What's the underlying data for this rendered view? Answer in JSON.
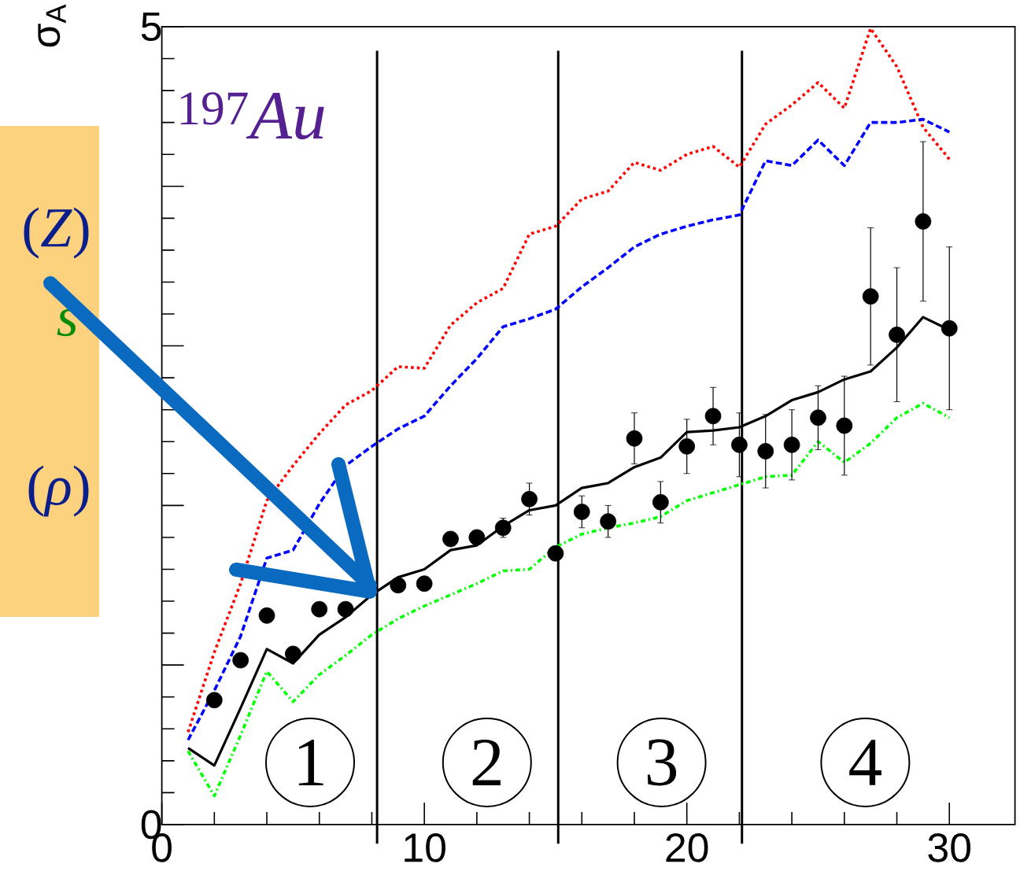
{
  "chart_data": {
    "type": "line",
    "ylabel": "σ$_{A}$",
    "x": [
      1,
      2,
      3,
      4,
      5,
      6,
      7,
      8,
      9,
      10,
      11,
      12,
      13,
      14,
      15,
      16,
      17,
      18,
      19,
      20,
      21,
      22,
      23,
      24,
      25,
      26,
      27,
      28,
      29,
      30
    ],
    "series": [
      {
        "type": "scatter",
        "color": "#000000",
        "marker": "circle",
        "x": [
          2,
          3,
          4,
          5,
          6,
          7,
          8,
          9,
          10,
          11,
          12,
          13,
          14,
          15,
          16,
          17,
          18,
          19,
          20,
          21,
          22,
          23,
          24,
          25,
          26,
          27,
          28,
          29,
          30
        ],
        "values": [
          0.78,
          1.03,
          1.31,
          1.07,
          1.35,
          1.35,
          null,
          1.5,
          1.51,
          1.79,
          1.8,
          1.86,
          2.04,
          1.7,
          1.96,
          1.9,
          2.42,
          2.02,
          2.37,
          2.56,
          2.38,
          2.34,
          2.38,
          2.55,
          2.5,
          3.31,
          3.07,
          3.78,
          3.11
        ],
        "errors": [
          null,
          null,
          null,
          null,
          null,
          null,
          null,
          null,
          null,
          null,
          0.04,
          0.06,
          0.1,
          null,
          0.1,
          0.1,
          0.16,
          0.13,
          0.17,
          0.18,
          0.2,
          0.23,
          0.22,
          0.2,
          0.31,
          0.43,
          0.42,
          0.5,
          0.51
        ]
      },
      {
        "color": "#000000",
        "marker": "none",
        "line_style": "solid",
        "values": [
          0.48,
          0.37,
          0.73,
          1.1,
          1.01,
          1.19,
          1.3,
          1.44,
          1.55,
          1.6,
          1.72,
          1.75,
          1.87,
          1.97,
          2.0,
          2.11,
          2.14,
          2.24,
          2.3,
          2.46,
          2.47,
          2.49,
          2.56,
          2.66,
          2.71,
          2.79,
          2.84,
          2.99,
          3.18,
          3.1
        ]
      },
      {
        "color": "#ff0000",
        "marker": "none",
        "line_style": "dotted",
        "values": [
          0.58,
          1.08,
          1.51,
          2.03,
          2.25,
          2.45,
          2.63,
          2.72,
          2.87,
          2.86,
          3.13,
          3.27,
          3.36,
          3.7,
          3.75,
          3.92,
          3.97,
          4.15,
          4.1,
          4.2,
          4.25,
          4.12,
          4.39,
          4.51,
          4.65,
          4.49,
          4.99,
          4.75,
          4.37,
          4.17
        ]
      },
      {
        "color": "#0000ff",
        "marker": "none",
        "line_style": "dashed",
        "values": [
          0.53,
          0.84,
          1.18,
          1.67,
          1.72,
          2.01,
          2.25,
          2.37,
          2.48,
          2.56,
          2.75,
          2.92,
          3.12,
          3.17,
          3.23,
          3.37,
          3.49,
          3.62,
          3.7,
          3.75,
          3.79,
          3.82,
          4.16,
          4.13,
          4.29,
          4.13,
          4.4,
          4.4,
          4.42,
          4.34
        ]
      },
      {
        "color": "#00ff00",
        "marker": "none",
        "line_style": "dashdot",
        "values": [
          0.46,
          0.18,
          0.56,
          0.96,
          0.77,
          0.94,
          1.06,
          1.19,
          1.29,
          1.37,
          1.44,
          1.51,
          1.59,
          1.6,
          1.74,
          1.82,
          1.86,
          1.89,
          1.93,
          2.03,
          2.08,
          2.13,
          2.18,
          2.19,
          2.4,
          2.27,
          2.39,
          2.55,
          2.64,
          2.55
        ]
      }
    ],
    "xlim": [
      0,
      32.5
    ],
    "ylim": [
      0,
      5
    ],
    "xticks": [
      0,
      10,
      20,
      30
    ],
    "yticks": [
      0,
      {
        "value": 1,
        "label": null
      },
      {
        "value": 2,
        "label": null
      },
      {
        "value": 3,
        "label": null
      },
      {
        "value": 4,
        "label": null
      },
      5
    ],
    "ref_lines": [
      {
        "axis": "x",
        "value": 8.2,
        "color": "#000000"
      },
      {
        "axis": "x",
        "value": 15.1,
        "color": "#000000"
      },
      {
        "axis": "x",
        "value": 22.1,
        "color": "#000000"
      }
    ],
    "annotations": [
      "$^{197}$*Au*",
      "1",
      "2",
      "3",
      "4",
      "(*Z*)",
      "*s*",
      "(*ρ*)"
    ],
    "grid": false
  }
}
